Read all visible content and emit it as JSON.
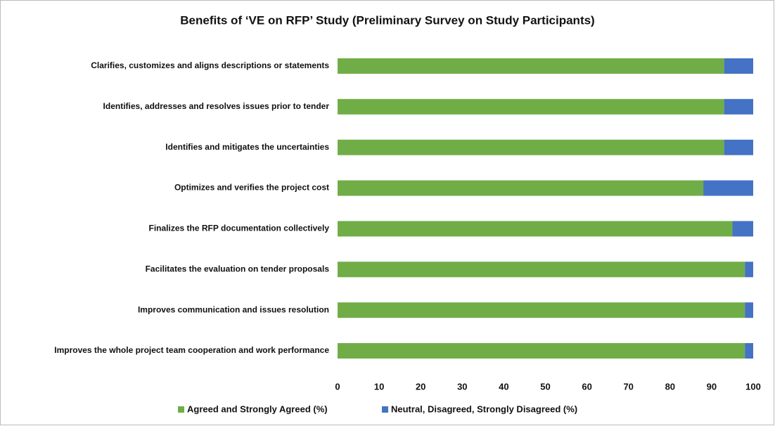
{
  "chart_data": {
    "type": "stacked-barh",
    "title": "Benefits of ‘VE on RFP’ Study (Preliminary Survey on Study Participants)",
    "categories": [
      "Clarifies, customizes and aligns descriptions or statements",
      "Identifies, addresses and resolves issues prior to tender",
      "Identifies and mitigates the uncertainties",
      "Optimizes and verifies the project cost",
      "Finalizes the RFP documentation collectively",
      "Facilitates the evaluation on tender proposals",
      "Improves communication and issues resolution",
      "Improves the whole project team cooperation and work performance"
    ],
    "series": [
      {
        "name": "Agreed and Strongly Agreed (%)",
        "color": "#70ad47",
        "values": [
          93,
          93,
          93,
          88,
          95,
          98,
          98,
          98
        ]
      },
      {
        "name": "Neutral, Disagreed, Strongly Disagreed (%)",
        "color": "#4472c4",
        "values": [
          7,
          7,
          7,
          12,
          5,
          2,
          2,
          2
        ]
      }
    ],
    "xlim": [
      0,
      100
    ],
    "xticks": [
      0,
      10,
      20,
      30,
      40,
      50,
      60,
      70,
      80,
      90,
      100
    ],
    "grid": false,
    "legend": "bottom"
  }
}
